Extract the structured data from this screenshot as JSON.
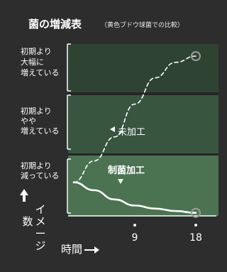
{
  "title": "菌の増減表",
  "subtitle": "（黄色ブドウ球菌での比較）",
  "colors": {
    "background": "#2d2d2d",
    "band_top": "#2f4333",
    "band_middle": "#385540",
    "band_bottom": "#4b7352",
    "line": "#ffffff",
    "marker": "#9a9a9a"
  },
  "chart_data": {
    "type": "line",
    "title": "菌の増減表",
    "subtitle": "（黄色ブドウ球菌での比較）",
    "xlabel": "時間",
    "ylabel": "イメージ数",
    "x_ticks": [
      9,
      18
    ],
    "xlim": [
      0,
      20
    ],
    "y_categories": [
      "初期より減っている",
      "初期よりやや増えている",
      "初期より大幅に増えている"
    ],
    "y_category_lines": [
      [
        "初期より",
        "減っている"
      ],
      [
        "初期より",
        "やや",
        "増えている"
      ],
      [
        "初期より",
        "大幅に",
        "増えている"
      ]
    ],
    "series": [
      {
        "name": "未加工",
        "style": "dashed",
        "points": [
          [
            0,
            0.55
          ],
          [
            3,
            0.9
          ],
          [
            6,
            1.3
          ],
          [
            9,
            1.85
          ],
          [
            12,
            2.3
          ],
          [
            15,
            2.62
          ],
          [
            18,
            2.75
          ]
        ]
      },
      {
        "name": "制菌加工",
        "style": "solid",
        "points": [
          [
            0,
            0.55
          ],
          [
            3,
            0.42
          ],
          [
            6,
            0.27
          ],
          [
            9,
            0.17
          ],
          [
            12,
            0.12
          ],
          [
            15,
            0.08
          ],
          [
            18,
            0.05
          ]
        ]
      }
    ],
    "ylim": [
      0,
      3
    ],
    "grid": false,
    "legend": "none"
  }
}
